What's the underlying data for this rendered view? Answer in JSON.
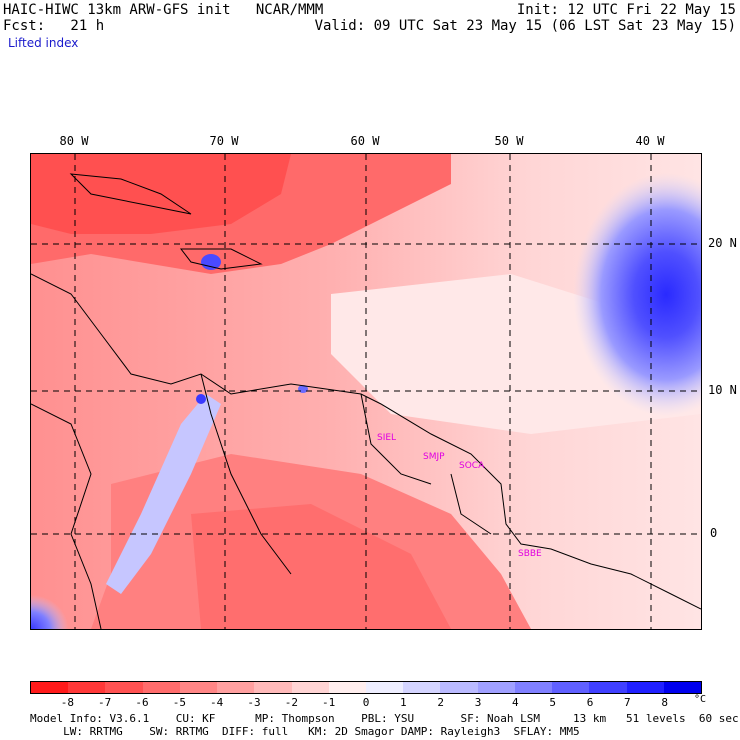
{
  "header": {
    "model_line": "HAIC-HIWC 13km ARW-GFS init   NCAR/MMM",
    "fcst_line": "Fcst:   21 h",
    "field_name": "Lifted index",
    "init_line": "Init: 12 UTC Fri 22 May 15",
    "valid_line": "Valid: 09 UTC Sat 23 May 15 (06 LST Sat 23 May 15)"
  },
  "axes": {
    "longitudes": [
      "80 W",
      "70 W",
      "60 W",
      "50 W",
      "40 W"
    ],
    "latitudes": [
      "20 N",
      "10 N",
      "0"
    ]
  },
  "stations": [
    "SIEL",
    "SMJP",
    "SOCA",
    "SBBE"
  ],
  "colorbar": {
    "ticks": [
      "-8",
      "-7",
      "-6",
      "-5",
      "-4",
      "-3",
      "-2",
      "-1",
      "0",
      "1",
      "2",
      "3",
      "4",
      "5",
      "6",
      "7",
      "8"
    ],
    "unit": "°C",
    "colors": [
      "#ff1a1a",
      "#ff3838",
      "#ff5252",
      "#ff6c6c",
      "#ff8686",
      "#ffa0a0",
      "#ffbaba",
      "#ffd4d4",
      "#ffeeee",
      "#eeeeff",
      "#d4d4ff",
      "#babaff",
      "#a0a0ff",
      "#8080ff",
      "#6060ff",
      "#4040ff",
      "#2020ff",
      "#0000ee"
    ]
  },
  "footer": {
    "line1": "Model Info: V3.6.1    CU: KF      MP: Thompson    PBL: YSU       SF: Noah LSM     13 km   51 levels  60 sec",
    "line2": "     LW: RRTMG    SW: RRTMG  DIFF: full   KM: 2D Smagor DAMP: Rayleigh3  SFLAY: MM5"
  }
}
